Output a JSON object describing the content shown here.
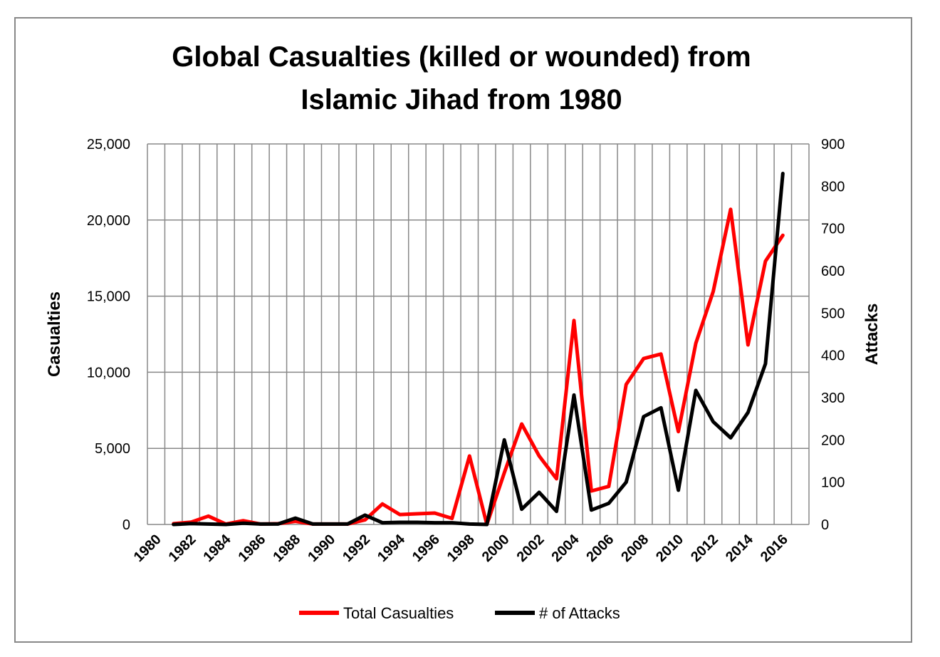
{
  "chart_data": {
    "type": "line",
    "title_lines": [
      "Global Casualties (killed or wounded) from",
      "Islamic Jihad from 1980"
    ],
    "ylabel": "Casualties",
    "y2label": "Attacks",
    "ylim": [
      0,
      25000
    ],
    "y2lim": [
      0,
      900
    ],
    "yticks": [
      0,
      5000,
      10000,
      15000,
      20000,
      25000
    ],
    "ytick_labels": [
      "0",
      "5,000",
      "10,000",
      "15,000",
      "20,000",
      "25,000"
    ],
    "y2ticks": [
      0,
      100,
      200,
      300,
      400,
      500,
      600,
      700,
      800,
      900
    ],
    "y2tick_labels": [
      "0",
      "100",
      "200",
      "300",
      "400",
      "500",
      "600",
      "700",
      "800",
      "900"
    ],
    "x_tick_labels": [
      "1980",
      "1982",
      "1984",
      "1986",
      "1988",
      "1990",
      "1992",
      "1994",
      "1996",
      "1998",
      "2000",
      "2002",
      "2004",
      "2006",
      "2008",
      "2010",
      "2012",
      "2014",
      "2016"
    ],
    "x": [
      1981,
      1982,
      1983,
      1984,
      1985,
      1986,
      1987,
      1988,
      1989,
      1990,
      1991,
      1992,
      1993,
      1994,
      1995,
      1996,
      1997,
      1998,
      1999,
      2000,
      2001,
      2002,
      2003,
      2004,
      2005,
      2006,
      2007,
      2008,
      2009,
      2010,
      2011,
      2012,
      2013,
      2014,
      2015,
      2016
    ],
    "grid": true,
    "legend_position": "bottom",
    "series": [
      {
        "name": "Total Casualties",
        "axis": "left",
        "color": "#ff0000",
        "values": [
          50,
          150,
          550,
          30,
          250,
          30,
          50,
          200,
          30,
          30,
          30,
          300,
          1350,
          650,
          700,
          750,
          400,
          4500,
          0,
          3400,
          6600,
          4500,
          3000,
          13400,
          2200,
          2500,
          9200,
          10900,
          11200,
          6100,
          11900,
          15300,
          20700,
          11800,
          17300,
          19000
        ]
      },
      {
        "name": "# of Attacks",
        "axis": "right",
        "color": "#000000",
        "values": [
          0,
          2,
          1,
          0,
          3,
          1,
          1,
          15,
          1,
          1,
          1,
          22,
          4,
          5,
          5,
          4,
          4,
          1,
          0,
          200,
          36,
          76,
          31,
          306,
          34,
          50,
          100,
          255,
          276,
          81,
          317,
          243,
          205,
          265,
          380,
          830
        ]
      }
    ]
  }
}
